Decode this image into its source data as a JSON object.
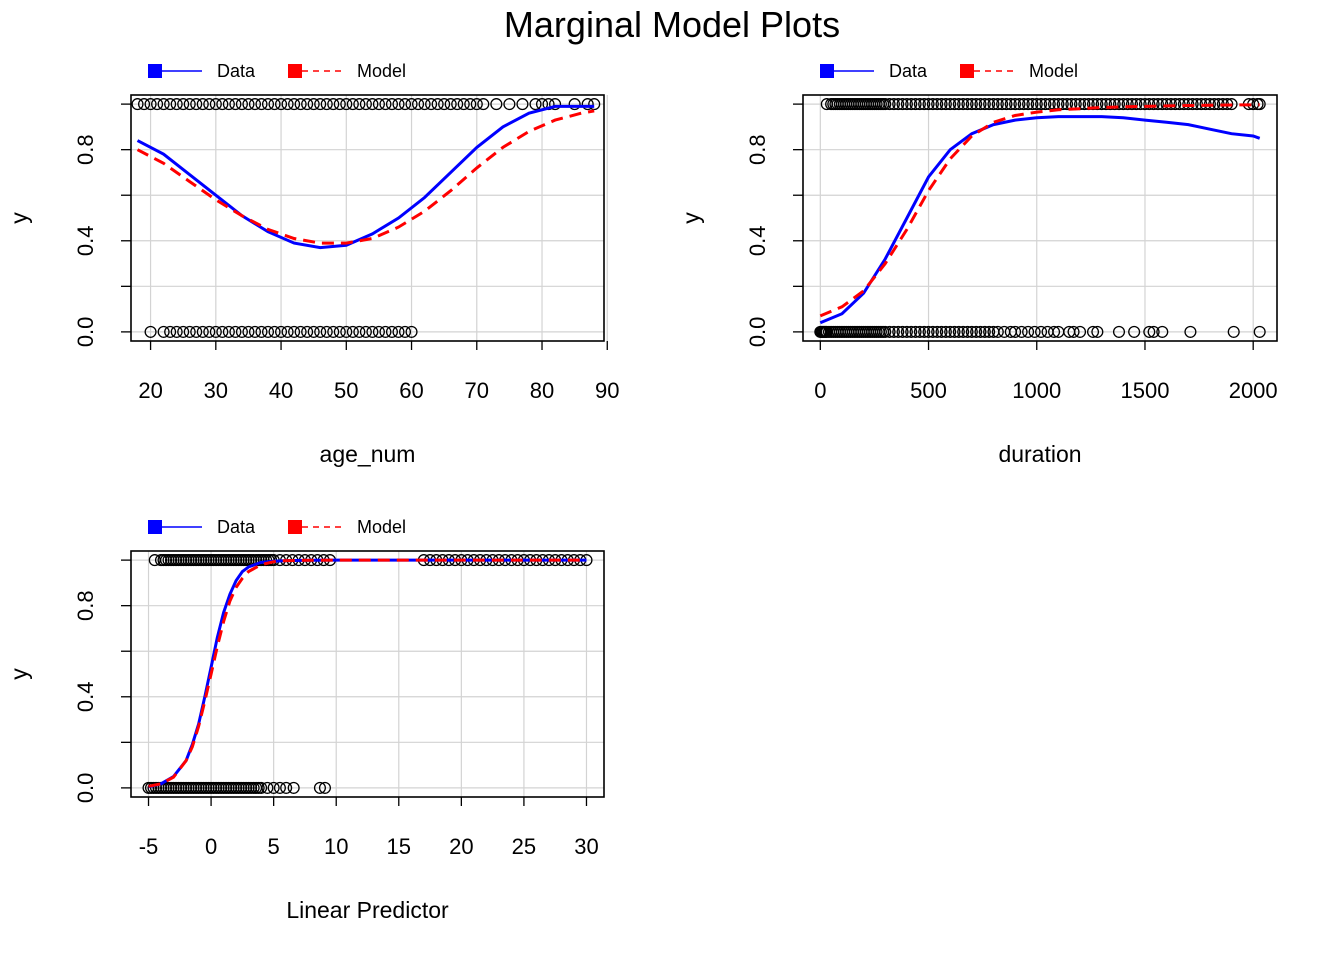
{
  "title": "Marginal Model Plots",
  "colors": {
    "data": "#0000ff",
    "model": "#ff0000",
    "grid": "#d3d3d3",
    "points": "#000000"
  },
  "legend": {
    "items": [
      {
        "label": "Data",
        "color": "#0000ff",
        "dash": "solid"
      },
      {
        "label": "Model",
        "color": "#ff0000",
        "dash": "dashed"
      }
    ],
    "placement": "top-left"
  },
  "chart_data": [
    {
      "type": "scatter",
      "xlabel": "age_num",
      "ylabel": "y",
      "xlim": [
        17,
        89.5
      ],
      "ylim": [
        -0.04,
        1.04
      ],
      "xticks": [
        20,
        30,
        40,
        50,
        60,
        70,
        80,
        90
      ],
      "xtick_labels": [
        "20",
        "30",
        "40",
        "50",
        "60",
        "70",
        "80",
        "90"
      ],
      "yticks": [
        0,
        0.2,
        0.4,
        0.6,
        0.8,
        1.0
      ],
      "ytick_labels": [
        "0.0",
        "",
        "0.4",
        "",
        "0.8",
        ""
      ],
      "grid": true,
      "points_y1": [
        18,
        19,
        20,
        21,
        22,
        23,
        24,
        25,
        26,
        27,
        28,
        29,
        30,
        31,
        32,
        33,
        34,
        35,
        36,
        37,
        38,
        39,
        40,
        41,
        42,
        43,
        44,
        45,
        46,
        47,
        48,
        49,
        50,
        51,
        52,
        53,
        54,
        55,
        56,
        57,
        58,
        59,
        60,
        61,
        62,
        63,
        64,
        65,
        66,
        67,
        68,
        69,
        70,
        71,
        73,
        75,
        77,
        79,
        80,
        81,
        82,
        85,
        87,
        88
      ],
      "points_y0": [
        20,
        22,
        23,
        24,
        25,
        26,
        27,
        28,
        29,
        30,
        31,
        32,
        33,
        34,
        35,
        36,
        37,
        38,
        39,
        40,
        41,
        42,
        43,
        44,
        45,
        46,
        47,
        48,
        49,
        50,
        51,
        52,
        53,
        54,
        55,
        56,
        57,
        58,
        59,
        60
      ],
      "series": [
        {
          "name": "Data",
          "style": "solid",
          "x": [
            18,
            22,
            26,
            30,
            34,
            38,
            42,
            46,
            50,
            54,
            58,
            62,
            66,
            70,
            74,
            78,
            82,
            86,
            88
          ],
          "y": [
            0.84,
            0.78,
            0.69,
            0.6,
            0.51,
            0.44,
            0.39,
            0.37,
            0.38,
            0.43,
            0.5,
            0.59,
            0.7,
            0.81,
            0.9,
            0.96,
            0.99,
            0.99,
            0.99
          ]
        },
        {
          "name": "Model",
          "style": "dashed",
          "x": [
            18,
            22,
            26,
            30,
            34,
            38,
            42,
            46,
            50,
            54,
            58,
            62,
            66,
            70,
            74,
            78,
            82,
            86,
            88
          ],
          "y": [
            0.8,
            0.74,
            0.66,
            0.58,
            0.51,
            0.45,
            0.41,
            0.39,
            0.39,
            0.41,
            0.46,
            0.53,
            0.62,
            0.72,
            0.81,
            0.88,
            0.93,
            0.96,
            0.97
          ]
        }
      ]
    },
    {
      "type": "scatter",
      "xlabel": "duration",
      "ylabel": "y",
      "xlim": [
        -80,
        2110
      ],
      "ylim": [
        -0.04,
        1.04
      ],
      "xticks": [
        0,
        500,
        1000,
        1500,
        2000
      ],
      "xtick_labels": [
        "0",
        "500",
        "1000",
        "1500",
        "2000"
      ],
      "yticks": [
        0,
        0.2,
        0.4,
        0.6,
        0.8,
        1.0
      ],
      "ytick_labels": [
        "0.0",
        "",
        "0.4",
        "",
        "0.8",
        ""
      ],
      "grid": true,
      "points_y1": [
        30,
        50,
        60,
        70,
        80,
        90,
        100,
        110,
        120,
        130,
        140,
        150,
        160,
        170,
        180,
        190,
        200,
        210,
        220,
        230,
        240,
        250,
        260,
        270,
        280,
        290,
        300,
        320,
        340,
        360,
        380,
        400,
        420,
        440,
        460,
        480,
        500,
        520,
        540,
        560,
        580,
        600,
        620,
        640,
        660,
        680,
        700,
        720,
        740,
        760,
        780,
        800,
        820,
        840,
        860,
        880,
        900,
        920,
        940,
        960,
        980,
        1000,
        1020,
        1040,
        1060,
        1080,
        1100,
        1120,
        1140,
        1160,
        1180,
        1200,
        1220,
        1240,
        1260,
        1280,
        1300,
        1320,
        1340,
        1360,
        1380,
        1400,
        1420,
        1440,
        1460,
        1480,
        1500,
        1520,
        1540,
        1560,
        1580,
        1600,
        1620,
        1640,
        1660,
        1680,
        1700,
        1720,
        1740,
        1760,
        1780,
        1800,
        1820,
        1840,
        1860,
        1880,
        1900,
        1980,
        2000,
        2020,
        2030
      ],
      "points_y0": [
        0,
        5,
        10,
        15,
        20,
        25,
        30,
        40,
        50,
        60,
        70,
        80,
        90,
        100,
        110,
        120,
        130,
        140,
        150,
        160,
        170,
        180,
        190,
        200,
        210,
        220,
        230,
        240,
        250,
        260,
        270,
        280,
        290,
        300,
        320,
        340,
        360,
        380,
        400,
        420,
        440,
        460,
        480,
        500,
        520,
        540,
        560,
        580,
        600,
        620,
        640,
        660,
        680,
        700,
        720,
        740,
        760,
        780,
        800,
        820,
        850,
        880,
        900,
        930,
        960,
        990,
        1020,
        1050,
        1080,
        1100,
        1150,
        1170,
        1200,
        1260,
        1280,
        1380,
        1450,
        1520,
        1540,
        1580,
        1710,
        1910,
        2030
      ],
      "series": [
        {
          "name": "Data",
          "style": "solid",
          "x": [
            0,
            100,
            200,
            300,
            400,
            500,
            600,
            700,
            800,
            900,
            1000,
            1100,
            1200,
            1300,
            1400,
            1500,
            1600,
            1700,
            1800,
            1900,
            2000,
            2030
          ],
          "y": [
            0.04,
            0.08,
            0.17,
            0.32,
            0.5,
            0.68,
            0.8,
            0.87,
            0.91,
            0.93,
            0.94,
            0.945,
            0.945,
            0.945,
            0.94,
            0.93,
            0.92,
            0.91,
            0.89,
            0.87,
            0.86,
            0.85
          ]
        },
        {
          "name": "Model",
          "style": "dashed",
          "x": [
            0,
            100,
            200,
            300,
            400,
            500,
            600,
            700,
            800,
            900,
            1000,
            1100,
            1200,
            1300,
            1400,
            1500,
            1600,
            1700,
            1800,
            1900,
            2000,
            2030
          ],
          "y": [
            0.07,
            0.11,
            0.18,
            0.3,
            0.45,
            0.62,
            0.76,
            0.86,
            0.92,
            0.95,
            0.965,
            0.975,
            0.98,
            0.985,
            0.988,
            0.99,
            0.992,
            0.994,
            0.995,
            0.996,
            0.997,
            0.997
          ]
        }
      ]
    },
    {
      "type": "scatter",
      "xlabel": "Linear Predictor",
      "ylabel": "y",
      "xlim": [
        -6.4,
        31.4
      ],
      "ylim": [
        -0.04,
        1.04
      ],
      "xticks": [
        -5,
        0,
        5,
        10,
        15,
        20,
        25,
        30
      ],
      "xtick_labels": [
        "-5",
        "0",
        "5",
        "10",
        "15",
        "20",
        "25",
        "30"
      ],
      "yticks": [
        0,
        0.2,
        0.4,
        0.6,
        0.8,
        1.0
      ],
      "ytick_labels": [
        "0.0",
        "",
        "0.4",
        "",
        "0.8",
        ""
      ],
      "grid": true,
      "points_y1": [
        -4.5,
        -4,
        -3.8,
        -3.6,
        -3.4,
        -3.2,
        -3,
        -2.8,
        -2.6,
        -2.4,
        -2.2,
        -2,
        -1.8,
        -1.6,
        -1.4,
        -1.2,
        -1,
        -0.8,
        -0.6,
        -0.4,
        -0.2,
        0,
        0.2,
        0.4,
        0.6,
        0.8,
        1,
        1.2,
        1.4,
        1.6,
        1.8,
        2,
        2.2,
        2.4,
        2.6,
        2.8,
        3,
        3.2,
        3.4,
        3.6,
        3.8,
        4,
        4.2,
        4.4,
        4.6,
        4.8,
        5,
        5.5,
        6,
        6.5,
        7,
        7.5,
        8,
        8.5,
        9,
        9.5,
        17,
        17.5,
        18,
        18.5,
        19,
        19.5,
        20,
        20.5,
        21,
        21.5,
        22,
        22.5,
        23,
        23.5,
        24,
        24.5,
        25,
        25.5,
        26,
        26.5,
        27,
        27.5,
        28,
        28.5,
        29,
        29.5,
        30
      ],
      "points_y0": [
        -5,
        -4.8,
        -4.6,
        -4.4,
        -4.2,
        -4,
        -3.8,
        -3.6,
        -3.4,
        -3.2,
        -3,
        -2.8,
        -2.6,
        -2.4,
        -2.2,
        -2,
        -1.8,
        -1.6,
        -1.4,
        -1.2,
        -1,
        -0.8,
        -0.6,
        -0.4,
        -0.2,
        0,
        0.2,
        0.4,
        0.6,
        0.8,
        1,
        1.2,
        1.4,
        1.6,
        1.8,
        2,
        2.2,
        2.4,
        2.6,
        2.8,
        3,
        3.2,
        3.4,
        3.6,
        3.8,
        4,
        4.5,
        5,
        5.5,
        6,
        6.6,
        8.7,
        9.1
      ],
      "series": [
        {
          "name": "Data",
          "style": "solid",
          "x": [
            -5,
            -4,
            -3,
            -2,
            -1.5,
            -1,
            -0.5,
            0,
            0.5,
            1,
            1.5,
            2,
            2.5,
            3,
            4,
            5,
            6,
            8,
            10,
            15,
            20,
            25,
            30
          ],
          "y": [
            0.005,
            0.018,
            0.05,
            0.12,
            0.19,
            0.28,
            0.4,
            0.53,
            0.66,
            0.77,
            0.85,
            0.91,
            0.95,
            0.97,
            0.99,
            0.995,
            0.998,
            0.999,
            1,
            1,
            1,
            1,
            1
          ]
        },
        {
          "name": "Model",
          "style": "dashed",
          "x": [
            -5,
            -4,
            -3,
            -2,
            -1.5,
            -1,
            -0.5,
            0,
            0.5,
            1,
            1.5,
            2,
            2.5,
            3,
            4,
            5,
            6,
            8,
            10,
            15,
            20,
            25,
            30
          ],
          "y": [
            0.007,
            0.018,
            0.047,
            0.12,
            0.18,
            0.27,
            0.38,
            0.5,
            0.62,
            0.73,
            0.82,
            0.88,
            0.92,
            0.95,
            0.98,
            0.993,
            0.998,
            0.999,
            1,
            1,
            1,
            1,
            1
          ]
        }
      ]
    }
  ]
}
